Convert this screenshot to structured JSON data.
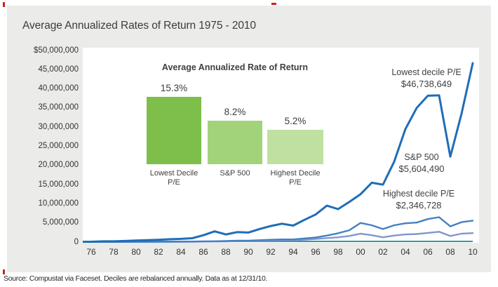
{
  "page": {
    "title": "Average Annualized Rates of Return 1975 - 2010",
    "source_note": "Source: Compustat via Faceset. Deciles are rebalanced annually. Data as at 12/31/10."
  },
  "colors": {
    "panel_bg": "#ebebe9",
    "plot_bg": "#ffffff",
    "axis_teal": "#2f9a9d",
    "line_dark_blue": "#1f6db7",
    "line_medium_blue": "#4480c2",
    "line_light_blue": "#8297d1",
    "bar_green_dark": "#7dbf4a",
    "bar_green_medium": "#a2d37b",
    "bar_green_light": "#bfe0a1",
    "crop_mark_red": "#c8251f"
  },
  "chart_data": [
    {
      "type": "line",
      "title": "Average Annualized Rates of Return 1975 - 2010",
      "x": [
        1975,
        1976,
        1977,
        1978,
        1979,
        1980,
        1981,
        1982,
        1983,
        1984,
        1985,
        1986,
        1987,
        1988,
        1989,
        1990,
        1991,
        1992,
        1993,
        1994,
        1995,
        1996,
        1997,
        1998,
        1999,
        2000,
        2001,
        2002,
        2003,
        2004,
        2005,
        2006,
        2007,
        2008,
        2009,
        2010
      ],
      "x_tick_labels": [
        "76",
        "78",
        "80",
        "82",
        "84",
        "86",
        "88",
        "90",
        "92",
        "94",
        "96",
        "98",
        "00",
        "02",
        "04",
        "06",
        "08",
        "10"
      ],
      "y_tick_labels": [
        "$50,000,000",
        "45,000,000",
        "40,000,000",
        "35,000,000",
        "30,000,000",
        "25,000,000",
        "20,000,000",
        "15,000,000",
        "10,000,000",
        "5,000,000",
        "0"
      ],
      "ylim_usd": [
        0,
        50000000
      ],
      "values_unit": "millions_usd",
      "legend_position": "inline-right",
      "grid": false,
      "series": [
        {
          "name": "Lowest decile P/E",
          "end_label": "$46,738,649",
          "color": "#1f6db7",
          "values_musd": [
            0.01,
            0.1,
            0.2,
            0.2,
            0.3,
            0.4,
            0.5,
            0.6,
            0.75,
            0.85,
            1.0,
            1.8,
            2.8,
            2.0,
            2.6,
            2.5,
            3.4,
            4.2,
            4.8,
            4.3,
            5.8,
            7.2,
            9.5,
            8.6,
            10.5,
            12.5,
            15.5,
            15.0,
            21.0,
            29.5,
            35.0,
            38.2,
            38.3,
            22.3,
            33.5,
            46.7
          ]
        },
        {
          "name": "S&P 500",
          "end_label": "$5,604,490",
          "color": "#4480c2",
          "values_musd": [
            0.01,
            0.02,
            0.02,
            0.03,
            0.04,
            0.05,
            0.05,
            0.07,
            0.1,
            0.11,
            0.15,
            0.2,
            0.22,
            0.28,
            0.38,
            0.38,
            0.5,
            0.6,
            0.7,
            0.7,
            0.95,
            1.2,
            1.7,
            2.3,
            3.1,
            5.0,
            4.4,
            3.4,
            4.4,
            4.9,
            5.1,
            6.0,
            6.5,
            4.1,
            5.2,
            5.6
          ]
        },
        {
          "name": "Highest decile P/E",
          "end_label": "$2,346,728",
          "color": "#8297d1",
          "values_musd": [
            0.01,
            0.015,
            0.02,
            0.02,
            0.03,
            0.04,
            0.04,
            0.05,
            0.07,
            0.08,
            0.1,
            0.13,
            0.15,
            0.18,
            0.25,
            0.25,
            0.33,
            0.4,
            0.5,
            0.5,
            0.65,
            0.8,
            1.05,
            1.25,
            1.6,
            2.2,
            1.8,
            1.25,
            1.7,
            2.0,
            2.1,
            2.4,
            2.7,
            1.6,
            2.2,
            2.35
          ]
        }
      ]
    },
    {
      "type": "bar",
      "title": "Average Annualized Rate of Return",
      "categories": [
        "Lowest Decile\nP/E",
        "S&P 500",
        "Highest Decile\nP/E"
      ],
      "values": [
        15.3,
        8.2,
        5.2
      ],
      "value_labels": [
        "15.3%",
        "8.2%",
        "5.2%"
      ],
      "colors": [
        "#7dbf4a",
        "#a2d37b",
        "#bfe0a1"
      ],
      "grid": false
    }
  ]
}
